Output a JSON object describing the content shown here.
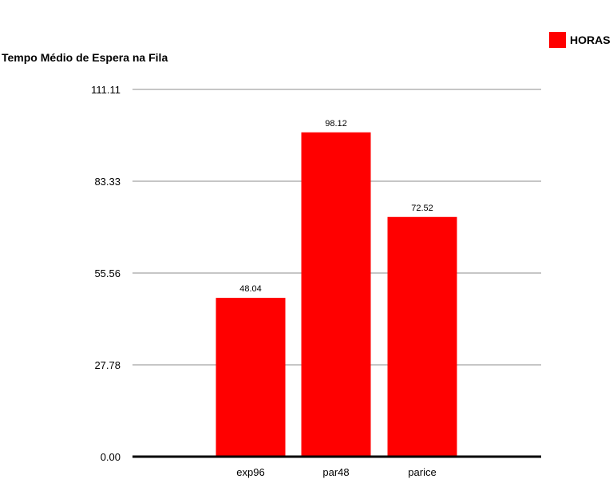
{
  "chart_data": {
    "type": "bar",
    "title": "Tempo Médio de Espera na Fila",
    "xlabel": "",
    "ylabel": "",
    "categories": [
      "exp96",
      "par48",
      "parice"
    ],
    "series": [
      {
        "name": "HORAS",
        "values": [
          48.04,
          98.12,
          72.52
        ],
        "color": "#ff0000"
      }
    ],
    "value_labels": [
      "48.04",
      "98.12",
      "72.52"
    ],
    "ylim": [
      0,
      111.11
    ],
    "yticks": [
      0,
      27.78,
      55.56,
      83.33,
      111.11
    ],
    "ytick_labels": [
      "0.00",
      "27.78",
      "55.56",
      "83.33",
      "111.11"
    ],
    "grid": true,
    "legend_position": "top-right"
  }
}
